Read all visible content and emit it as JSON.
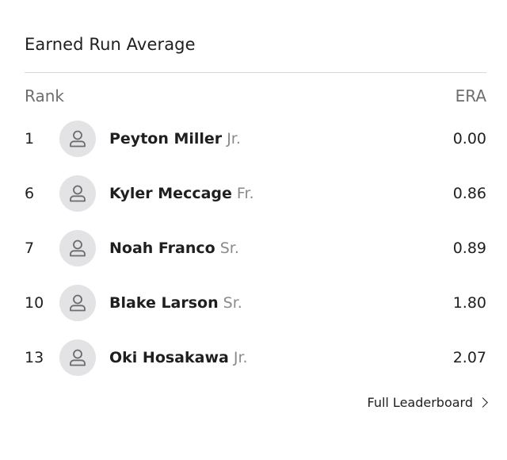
{
  "title": "Earned Run Average",
  "header": {
    "rank_label": "Rank",
    "era_label": "ERA"
  },
  "players": [
    {
      "rank": "1",
      "name": "Peyton Miller",
      "class": "Jr.",
      "era": "0.00",
      "avatar_icon": "person-icon"
    },
    {
      "rank": "6",
      "name": "Kyler Meccage",
      "class": "Fr.",
      "era": "0.86",
      "avatar_icon": "person-icon"
    },
    {
      "rank": "7",
      "name": "Noah Franco",
      "class": "Sr.",
      "era": "0.89",
      "avatar_icon": "person-icon"
    },
    {
      "rank": "10",
      "name": "Blake Larson",
      "class": "Sr.",
      "era": "1.80",
      "avatar_icon": "person-icon"
    },
    {
      "rank": "13",
      "name": "Oki Hosakawa",
      "class": "Jr.",
      "era": "2.07",
      "avatar_icon": "person-icon"
    }
  ],
  "footer": {
    "link_label": "Full Leaderboard",
    "link_icon": "chevron-right-icon"
  },
  "colors": {
    "avatar_bg": "#e3e3e5",
    "muted_text": "#8a8a8a",
    "divider": "#d9d9d9"
  }
}
